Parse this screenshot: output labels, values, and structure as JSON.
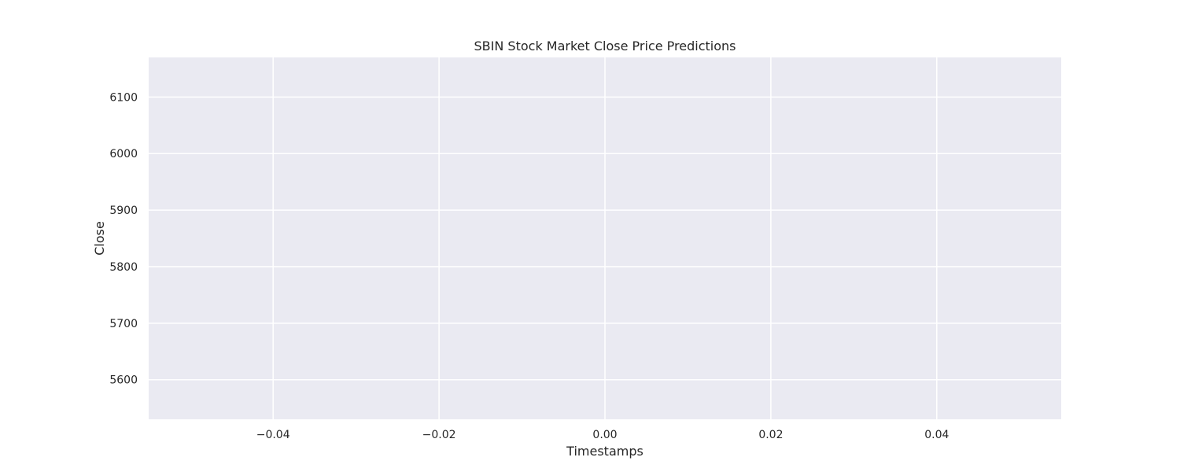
{
  "chart_data": {
    "type": "line",
    "title": "SBIN Stock Market Close Price Predictions",
    "xlabel": "Timestamps",
    "ylabel": "Close",
    "xlim": [
      -0.055,
      0.055
    ],
    "ylim": [
      5530,
      6170
    ],
    "xticks": [
      -0.04,
      -0.02,
      0.0,
      0.02,
      0.04
    ],
    "xtick_labels": [
      "−0.04",
      "−0.02",
      "0.00",
      "0.02",
      "0.04"
    ],
    "yticks": [
      5600,
      5700,
      5800,
      5900,
      6000,
      6100
    ],
    "ytick_labels": [
      "5600",
      "5700",
      "5800",
      "5900",
      "6000",
      "6100"
    ],
    "grid": true,
    "series": [],
    "colors": {
      "plot_background": "#EAEAF2",
      "grid": "#FFFFFF",
      "text": "#262626"
    }
  }
}
